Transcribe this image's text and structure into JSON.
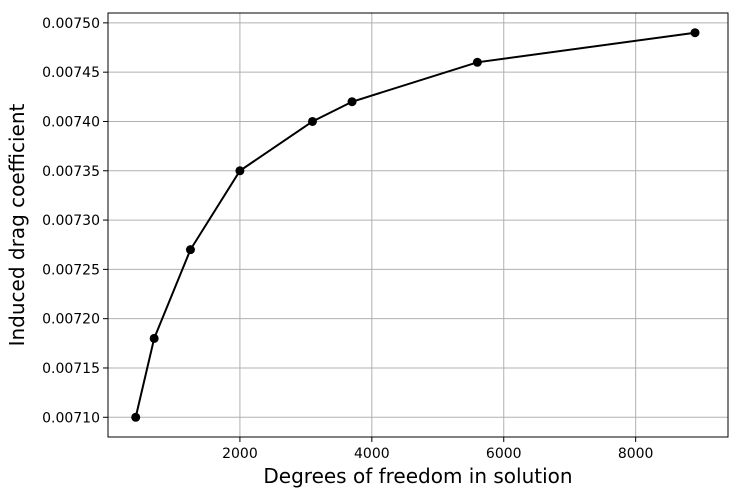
{
  "chart_data": {
    "type": "line",
    "title": "",
    "xlabel": "Degrees of freedom in solution",
    "ylabel": "Induced drag coefficient",
    "xlim": [
      0,
      9400
    ],
    "ylim": [
      0.00708,
      0.00751
    ],
    "xticks": [
      2000,
      4000,
      6000,
      8000
    ],
    "xtick_labels": [
      "2000",
      "4000",
      "6000",
      "8000"
    ],
    "yticks": [
      0.0071,
      0.00715,
      0.0072,
      0.00725,
      0.0073,
      0.00735,
      0.0074,
      0.00745,
      0.0075
    ],
    "ytick_labels": [
      "0.00710",
      "0.00715",
      "0.00720",
      "0.00725",
      "0.00730",
      "0.00735",
      "0.00740",
      "0.00745",
      "0.00750"
    ],
    "grid": true,
    "series": [
      {
        "x": [
          420,
          700,
          1250,
          2000,
          3100,
          3700,
          5600,
          8900
        ],
        "y": [
          0.0071,
          0.00718,
          0.00727,
          0.00735,
          0.0074,
          0.00742,
          0.00746,
          0.00749
        ],
        "color": "#000000",
        "marker": "circle"
      }
    ]
  }
}
